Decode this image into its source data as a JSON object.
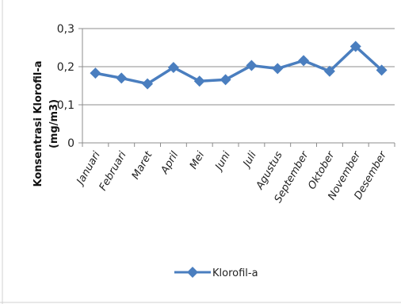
{
  "chart_data": {
    "type": "line",
    "categories": [
      "Januari",
      "Februari",
      "Maret",
      "April",
      "Mei",
      "Juni",
      "Juli",
      "Agustus",
      "September",
      "Oktober",
      "November",
      "Desember"
    ],
    "series": [
      {
        "name": "Klorofil-a",
        "values": [
          0.183,
          0.17,
          0.155,
          0.198,
          0.162,
          0.166,
          0.203,
          0.195,
          0.216,
          0.188,
          0.253,
          0.191
        ],
        "color": "#4a7ebf",
        "marker": "diamond"
      }
    ],
    "y_ticks": [
      "0",
      "0,1",
      "0,2",
      "0,3"
    ],
    "ylim": [
      0,
      0.3
    ],
    "ylabel_line1": "Konsentrasi Klorofil-a",
    "ylabel_line2": "(mg/m3)",
    "grid": true,
    "legend_position": "bottom",
    "colors": {
      "gridline": "#8c8c8c",
      "axis": "#8c8c8c",
      "frame": "#d0d0d0"
    }
  }
}
